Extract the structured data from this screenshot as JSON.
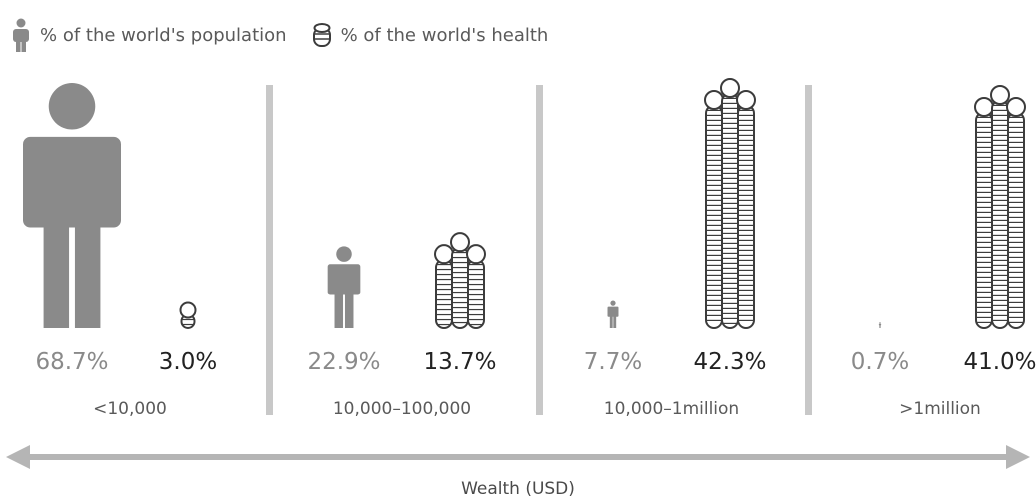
{
  "legend": {
    "population_label": "% of the world's population",
    "wealth_label": "% of the world's health",
    "population_icon": "person-icon",
    "wealth_icon": "coin-stack-icon"
  },
  "colors": {
    "person": "#8a8a8a",
    "coin_stroke": "#3c3c3c",
    "divider": "#c8c8c8",
    "axis": "#b5b5b5"
  },
  "chart_data": {
    "type": "bar",
    "categories": [
      "<10,000",
      "10,000–100,000",
      "10,000–1million",
      ">1million"
    ],
    "series": [
      {
        "name": "% of the world's population",
        "values": [
          68.7,
          22.9,
          7.7,
          0.7
        ],
        "labels": [
          "68.7%",
          "22.9%",
          "7.7%",
          "0.7%"
        ]
      },
      {
        "name": "% of the world's health",
        "values": [
          3.0,
          13.7,
          42.3,
          41.0
        ],
        "labels": [
          "3.0%",
          "13.7%",
          "42.3%",
          "41.0%"
        ]
      }
    ],
    "xlabel": "Wealth (USD)",
    "ylabel": "",
    "grid": false,
    "legend_position": "top-left"
  }
}
